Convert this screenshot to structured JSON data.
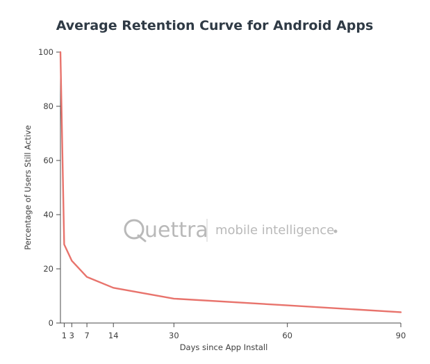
{
  "chart_data": {
    "type": "line",
    "title": "Average Retention Curve for Android Apps",
    "xlabel": "Days since App Install",
    "ylabel": "Percentage of Users Still Active",
    "x_ticks": [
      1,
      3,
      7,
      14,
      30,
      60,
      90
    ],
    "y_ticks": [
      0,
      20,
      40,
      60,
      80,
      100
    ],
    "xlim": [
      0,
      90
    ],
    "ylim": [
      0,
      100
    ],
    "grid": false,
    "series": [
      {
        "color": "#e8736c",
        "points": [
          {
            "x": 0,
            "y": 100
          },
          {
            "x": 1,
            "y": 29
          },
          {
            "x": 3,
            "y": 23
          },
          {
            "x": 7,
            "y": 17
          },
          {
            "x": 14,
            "y": 13
          },
          {
            "x": 30,
            "y": 9
          },
          {
            "x": 60,
            "y": 6.5
          },
          {
            "x": 90,
            "y": 4
          }
        ]
      }
    ]
  },
  "watermark": {
    "brand": "uettra",
    "tagline": "mobile intelligence",
    "logo_icon": "quettra-q-logo-icon",
    "color": "#b9b9b9"
  }
}
